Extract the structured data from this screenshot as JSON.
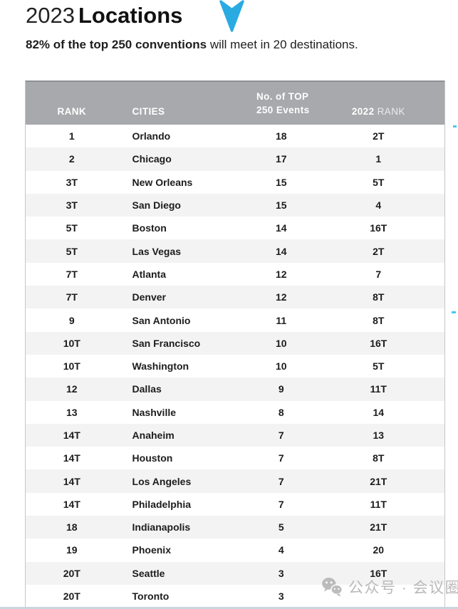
{
  "page": {
    "title_year": "2023",
    "title_word": "Locations",
    "subtitle_bold": "82% of the top 250 conventions",
    "subtitle_rest": " will meet in 20 destinations."
  },
  "table": {
    "col_rank": "RANK",
    "col_cities": "CITIES",
    "col_events_line1": "No. of TOP",
    "col_events_line2": "250 Events",
    "col_prev_bold": "2022",
    "col_prev_rest": " RANK",
    "rows": [
      {
        "rank": "1",
        "city": "Orlando",
        "events": "18",
        "prev": "2T"
      },
      {
        "rank": "2",
        "city": "Chicago",
        "events": "17",
        "prev": "1"
      },
      {
        "rank": "3T",
        "city": "New Orleans",
        "events": "15",
        "prev": "5T"
      },
      {
        "rank": "3T",
        "city": "San Diego",
        "events": "15",
        "prev": "4"
      },
      {
        "rank": "5T",
        "city": "Boston",
        "events": "14",
        "prev": "16T"
      },
      {
        "rank": "5T",
        "city": "Las Vegas",
        "events": "14",
        "prev": "2T"
      },
      {
        "rank": "7T",
        "city": "Atlanta",
        "events": "12",
        "prev": "7"
      },
      {
        "rank": "7T",
        "city": "Denver",
        "events": "12",
        "prev": "8T"
      },
      {
        "rank": "9",
        "city": "San Antonio",
        "events": "11",
        "prev": "8T"
      },
      {
        "rank": "10T",
        "city": "San Francisco",
        "events": "10",
        "prev": "16T"
      },
      {
        "rank": "10T",
        "city": "Washington",
        "events": "10",
        "prev": "5T"
      },
      {
        "rank": "12",
        "city": "Dallas",
        "events": "9",
        "prev": "11T"
      },
      {
        "rank": "13",
        "city": "Nashville",
        "events": "8",
        "prev": "14"
      },
      {
        "rank": "14T",
        "city": "Anaheim",
        "events": "7",
        "prev": "13"
      },
      {
        "rank": "14T",
        "city": "Houston",
        "events": "7",
        "prev": "8T"
      },
      {
        "rank": "14T",
        "city": "Los Angeles",
        "events": "7",
        "prev": "21T"
      },
      {
        "rank": "14T",
        "city": "Philadelphia",
        "events": "7",
        "prev": "11T"
      },
      {
        "rank": "18",
        "city": "Indianapolis",
        "events": "5",
        "prev": "21T"
      },
      {
        "rank": "19",
        "city": "Phoenix",
        "events": "4",
        "prev": "20"
      },
      {
        "rank": "20T",
        "city": "Seattle",
        "events": "3",
        "prev": "16T"
      },
      {
        "rank": "20T",
        "city": "Toronto",
        "events": "3",
        "prev": ""
      }
    ]
  },
  "watermark": {
    "label": "公众号 · 会议圈",
    "icon": "wechat-icon"
  },
  "colors": {
    "accent": "#29ABE2",
    "header_bg": "#A7A9AC",
    "row_alt": "#F3F3F3",
    "text": "#1E1E1E",
    "watermark": "#B6B6B6"
  }
}
